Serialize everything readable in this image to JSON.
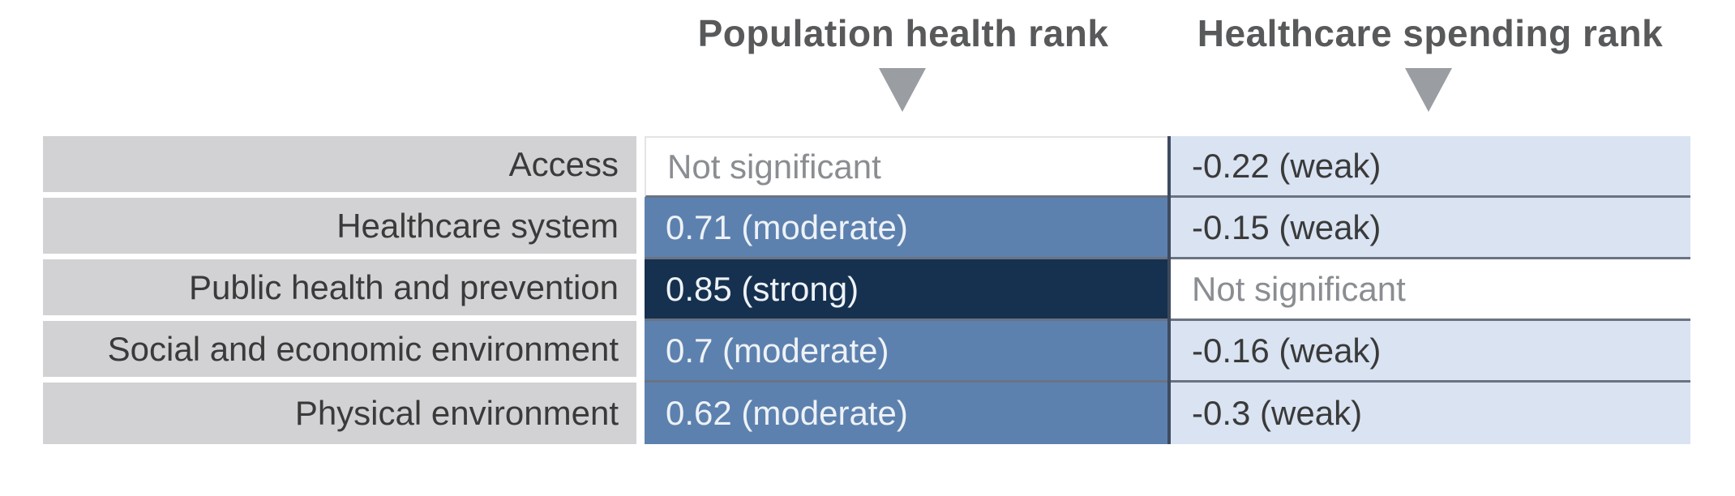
{
  "figure": {
    "columns": [
      {
        "id": "population",
        "label": "Population health rank"
      },
      {
        "id": "spending",
        "label": "Healthcare spending rank"
      }
    ],
    "rows": [
      {
        "label": "Access",
        "population": {
          "text": "Not significant",
          "strength": "none"
        },
        "spending": {
          "text": "-0.22 (weak)",
          "strength": "weak"
        }
      },
      {
        "label": "Healthcare system",
        "population": {
          "text": "0.71 (moderate)",
          "strength": "moderate"
        },
        "spending": {
          "text": "-0.15 (weak)",
          "strength": "weak"
        }
      },
      {
        "label": "Public health and prevention",
        "population": {
          "text": "0.85 (strong)",
          "strength": "strong"
        },
        "spending": {
          "text": "Not significant",
          "strength": "none"
        }
      },
      {
        "label": "Social and economic environment",
        "population": {
          "text": "0.7 (moderate)",
          "strength": "moderate"
        },
        "spending": {
          "text": "-0.16 (weak)",
          "strength": "weak"
        }
      },
      {
        "label": "Physical environment",
        "population": {
          "text": "0.62 (moderate)",
          "strength": "moderate"
        },
        "spending": {
          "text": "-0.3 (weak)",
          "strength": "weak"
        }
      }
    ]
  },
  "chart_data": {
    "type": "table",
    "columns": [
      "Population health rank",
      "Healthcare spending rank"
    ],
    "row_categories": [
      "Access",
      "Healthcare system",
      "Public health and prevention",
      "Social and economic environment",
      "Physical environment"
    ],
    "cells": [
      [
        "Not significant",
        "-0.22 (weak)"
      ],
      [
        "0.71 (moderate)",
        "-0.15 (weak)"
      ],
      [
        "0.85 (strong)",
        "Not significant"
      ],
      [
        "0.7 (moderate)",
        "-0.16 (weak)"
      ],
      [
        "0.62 (moderate)",
        "-0.3 (weak)"
      ]
    ],
    "numeric_values": {
      "population_health_rank": [
        null,
        0.71,
        0.85,
        0.7,
        0.62
      ],
      "healthcare_spending_rank": [
        -0.22,
        -0.15,
        null,
        -0.16,
        -0.3
      ]
    },
    "strength_classes": [
      [
        "none",
        "weak"
      ],
      [
        "moderate",
        "weak"
      ],
      [
        "strong",
        "none"
      ],
      [
        "moderate",
        "weak"
      ],
      [
        "moderate",
        "weak"
      ]
    ],
    "legend_position": "none",
    "grid": false
  },
  "icons": {
    "header_pointer": "down-triangle-icon"
  },
  "colors": {
    "header_text": "#58595b",
    "triangle": "#9a9da1",
    "label_bg": "#d2d2d4",
    "label_text": "#3a3a3a",
    "strong_bg": "#16314f",
    "moderate_bg": "#5d81ae",
    "weak_bg": "#d9e3f2",
    "not_significant_text": "#8a8d91",
    "value_text_light": "#eef2f7",
    "value_text_dark": "#3a3a3a",
    "row_separator": "#6a7383",
    "column_divider": "#3e4a5f"
  }
}
